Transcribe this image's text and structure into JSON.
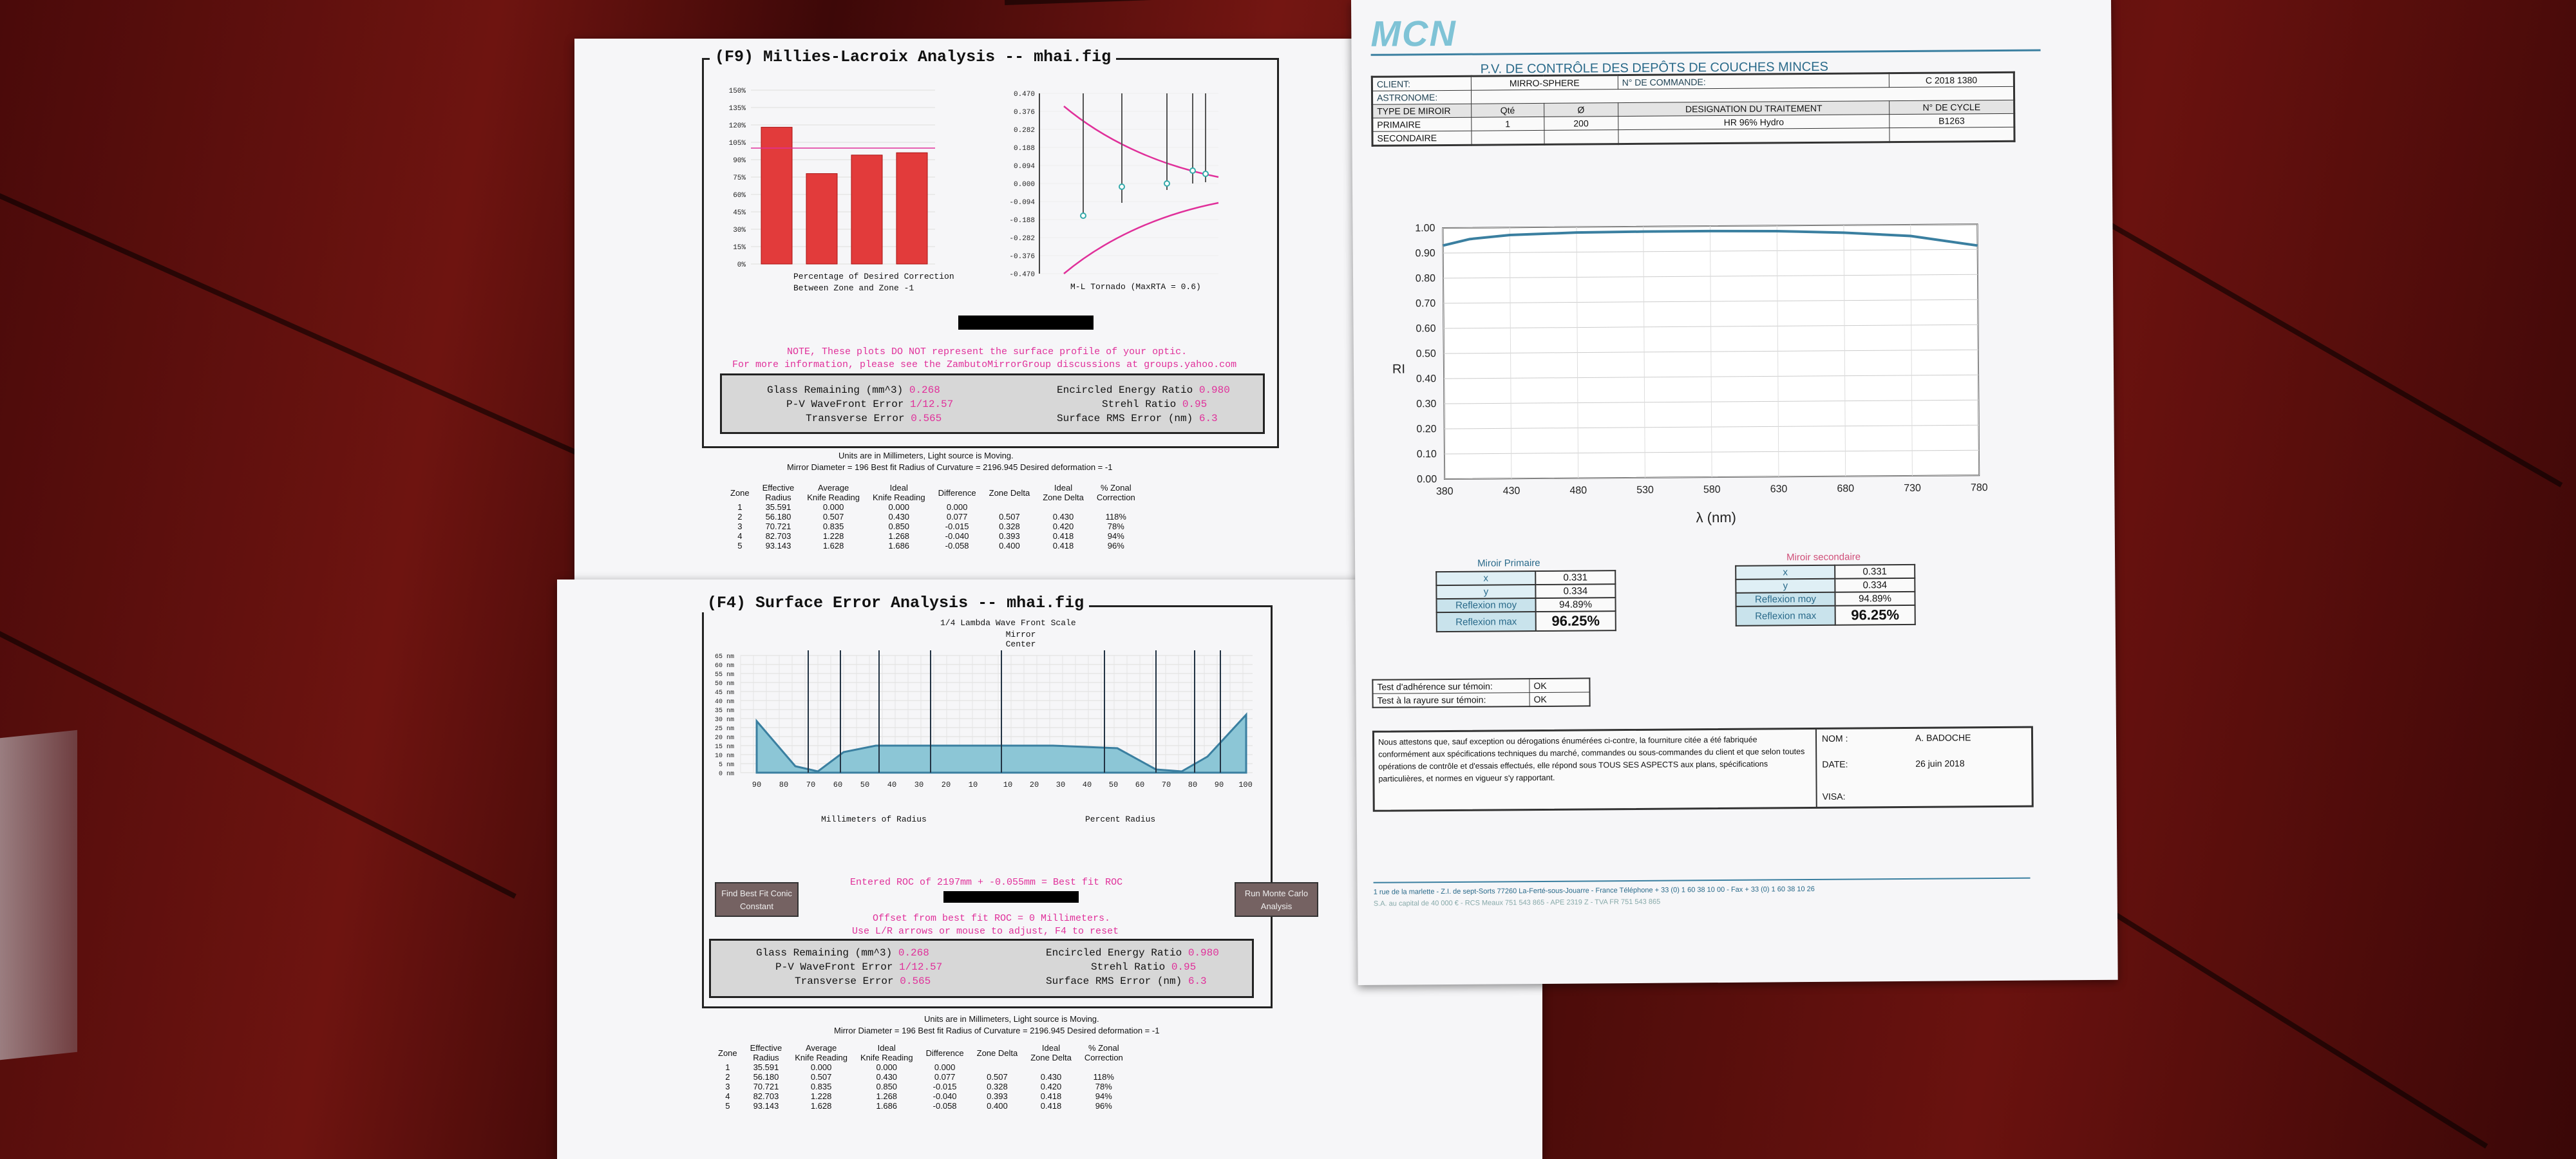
{
  "f9": {
    "title": "(F9) Millies-Lacroix Analysis -- mhai.fig",
    "bar_axis": [
      "150%",
      "135%",
      "120%",
      "105%",
      "90%",
      "75%",
      "60%",
      "45%",
      "30%",
      "15%",
      "0%"
    ],
    "bar_caption_1": "Percentage of Desired Correction",
    "bar_caption_2": "Between Zone and Zone -1",
    "tornado_axis": [
      "0.470",
      "0.376",
      "0.282",
      "0.188",
      "0.094",
      "0.000",
      "-0.094",
      "-0.188",
      "-0.282",
      "-0.376",
      "-0.470"
    ],
    "tornado_caption": "M-L Tornado (MaxRTA = 0.6)",
    "note_1": "NOTE, These plots DO NOT represent the surface profile of your optic.",
    "note_2": "For more information, please see the ZambutoMirrorGroup discussions at groups.yahoo.com"
  },
  "stats": {
    "glass_label": "Glass Remaining (mm^3)",
    "glass": "0.268",
    "pv_label": "P-V WaveFront Error",
    "pv": "1/12.57",
    "trans_label": "Transverse Error",
    "trans": "0.565",
    "ee_label": "Encircled Energy Ratio",
    "ee": "0.980",
    "strehl_label": "Strehl Ratio",
    "strehl": "0.95",
    "rms_label": "Surface RMS Error (nm)",
    "rms": "6.3"
  },
  "units_note": {
    "line1": "Units are in Millimeters, Light source is Moving.",
    "line2": "Mirror Diameter = 196    Best fit Radius of Curvature = 2196.945    Desired deformation = -1"
  },
  "zone_table": {
    "headers": [
      [
        "Zone"
      ],
      [
        "Effective",
        "Radius"
      ],
      [
        "Average",
        "Knife Reading"
      ],
      [
        "Ideal",
        "Knife Reading"
      ],
      [
        "Difference"
      ],
      [
        "Zone Delta"
      ],
      [
        "Ideal",
        "Zone Delta"
      ],
      [
        "% Zonal",
        "Correction"
      ]
    ],
    "rows": [
      [
        "1",
        "35.591",
        "0.000",
        "0.000",
        "0.000",
        "",
        "",
        ""
      ],
      [
        "2",
        "56.180",
        "0.507",
        "0.430",
        "0.077",
        "0.507",
        "0.430",
        "118%"
      ],
      [
        "3",
        "70.721",
        "0.835",
        "0.850",
        "-0.015",
        "0.328",
        "0.420",
        "78%"
      ],
      [
        "4",
        "82.703",
        "1.228",
        "1.268",
        "-0.040",
        "0.393",
        "0.418",
        "94%"
      ],
      [
        "5",
        "93.143",
        "1.628",
        "1.686",
        "-0.058",
        "0.400",
        "0.418",
        "96%"
      ]
    ]
  },
  "f4": {
    "title": "(F4) Surface Error Analysis -- mhai.fig",
    "scale": "1/4 Lambda Wave Front Scale",
    "center": "Mirror Center",
    "y_axis": [
      "65 nm",
      "60 nm",
      "55 nm",
      "50 nm",
      "45 nm",
      "40 nm",
      "35 nm",
      "30 nm",
      "25 nm",
      "20 nm",
      "15 nm",
      "10 nm",
      "5 nm",
      "0 nm"
    ],
    "x_left": [
      "90",
      "80",
      "70",
      "60",
      "50",
      "40",
      "30",
      "20",
      "10"
    ],
    "x_right": [
      "10",
      "20",
      "30",
      "40",
      "50",
      "60",
      "70",
      "80",
      "90",
      "100"
    ],
    "x_label_left": "Millimeters of Radius",
    "x_label_right": "Percent Radius",
    "roc_line": "Entered ROC of 2197mm + -0.055mm = Best fit ROC",
    "offset_1": "Offset from best fit ROC = 0 Millimeters.",
    "offset_2": "Use L/R arrows or mouse to adjust, F4 to reset",
    "btn_left": "Find Best Fit Conic Constant",
    "btn_right": "Run Monte Carlo Analysis"
  },
  "mcn": {
    "logo": "MCN",
    "title": "P.V. DE CONTRÔLE DES DEPÔTS DE COUCHES MINCES",
    "client_label": "CLIENT:",
    "client": "MIRRO-SPHERE",
    "order_label": "N° DE COMMANDE:",
    "order": "C 2018 1380",
    "astro_label": "ASTRONOME:",
    "type_label": "TYPE DE MIROIR",
    "qte_label": "Qté",
    "dia_label": "Ø",
    "treat_label": "DESIGNATION DU TRAITEMENT",
    "cycle_label": "N° DE CYCLE",
    "primary_label": "PRIMAIRE",
    "qte": "1",
    "dia": "200",
    "treat": "HR 96% Hydro",
    "cycle": "B1263",
    "secondary_label": "SECONDAIRE",
    "y_ticks": [
      "1.00",
      "0.90",
      "0.80",
      "0.70",
      "0.60",
      "0.50",
      "0.40",
      "0.30",
      "0.20",
      "0.10",
      "0.00"
    ],
    "x_ticks": [
      "380",
      "430",
      "480",
      "530",
      "580",
      "630",
      "680",
      "730",
      "780"
    ],
    "y_label": "RI",
    "x_label": "λ (nm)",
    "prim_title": "Miroir Primaire",
    "sec_title": "Miroir secondaire",
    "opt_rows": [
      [
        "x",
        "0.331"
      ],
      [
        "y",
        "0.334"
      ],
      [
        "Reflexion moy",
        "94.89%"
      ],
      [
        "Reflexion max",
        "96.25%"
      ]
    ],
    "adh_label": "Test d'adhérence sur témoin:",
    "adh": "OK",
    "ray_label": "Test à la rayure sur témoin:",
    "ray": "OK",
    "attest": "Nous attestons que, sauf exception ou dérogations énumérées ci-contre, la fourniture citée a été fabriquée conformément aux spécifications techniques du marché, commandes ou sous-commandes du client et que selon toutes opérations de contrôle et d'essais effectués, elle répond sous TOUS SES ASPECTS aux plans, spécifications particulières, et normes en vigueur s'y rapportant.",
    "nom_label": "NOM :",
    "nom": "A. BADOCHE",
    "date_label": "DATE:",
    "date": "26 juin 2018",
    "visa_label": "VISA:",
    "footer_1": "1 rue de la marlette - Z.I. de sept-Sorts 77260 La-Ferté-sous-Jouarre - France   Téléphone + 33 (0) 1 60 38 10 00  -  Fax + 33 (0) 1 60 38 10 26",
    "footer_2": "S.A. au capital de 40 000 €  -  RCS Meaux 751 543 865  -  APE 2319 Z  -  TVA FR 751 543 865"
  },
  "colors": {
    "bars": "#e23b3b",
    "curve": "#3a7fa0",
    "pink": "#e0309a"
  },
  "icons": [
    "redaction-bar"
  ]
}
